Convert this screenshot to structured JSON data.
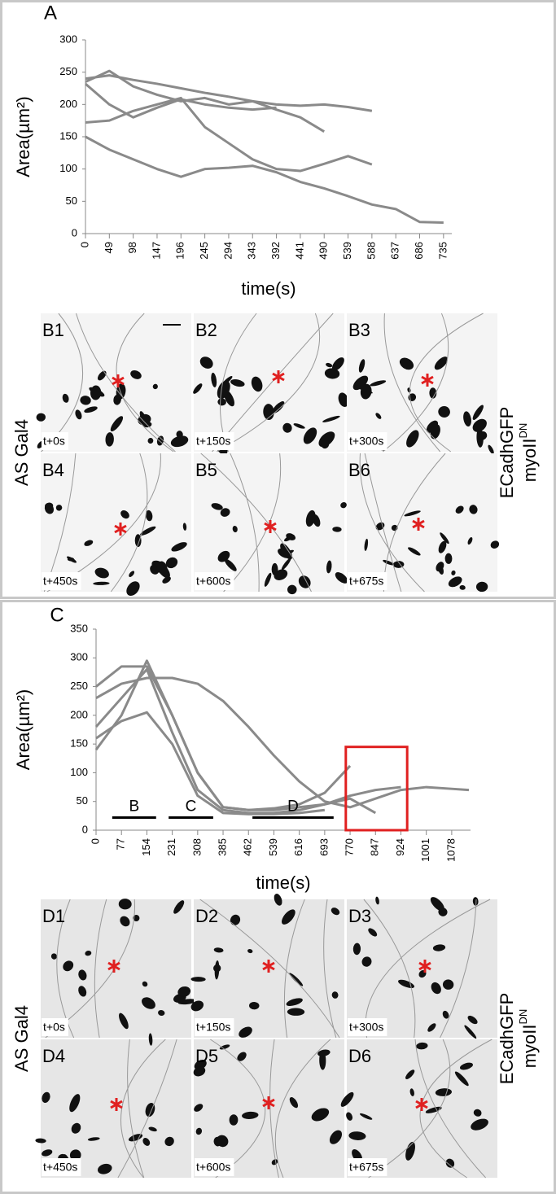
{
  "chart_data": [
    {
      "type": "line",
      "panel_label": "A",
      "ylabel": "Area(µm²)",
      "xlabel": "time(s)",
      "x": [
        0,
        49,
        98,
        147,
        196,
        245,
        294,
        343,
        392,
        441,
        490,
        539,
        588,
        637,
        686,
        735
      ],
      "series": [
        {
          "color": "#8a8a8a",
          "values": [
            240,
            245,
            238,
            232,
            225,
            218,
            212,
            205,
            200,
            198,
            200,
            196,
            190,
            null,
            null,
            null
          ]
        },
        {
          "color": "#8a8a8a",
          "values": [
            235,
            252,
            228,
            215,
            205,
            210,
            200,
            205,
            192,
            180,
            158,
            null,
            null,
            null,
            null,
            null
          ]
        },
        {
          "color": "#8a8a8a",
          "values": [
            172,
            175,
            190,
            200,
            210,
            165,
            140,
            115,
            100,
            97,
            108,
            120,
            107,
            null,
            null,
            null
          ]
        },
        {
          "color": "#8a8a8a",
          "values": [
            150,
            130,
            115,
            100,
            88,
            100,
            102,
            105,
            95,
            80,
            70,
            58,
            45,
            38,
            18,
            17
          ]
        },
        {
          "color": "#8a8a8a",
          "values": [
            232,
            200,
            180,
            195,
            208,
            200,
            195,
            192,
            195,
            null,
            null,
            null,
            null,
            null,
            null,
            null
          ]
        }
      ],
      "xlim": [
        0,
        752
      ],
      "ylim": [
        0,
        300
      ],
      "xticks": [
        0,
        49,
        98,
        147,
        196,
        245,
        294,
        343,
        392,
        441,
        490,
        539,
        588,
        637,
        686,
        735
      ],
      "yticks": [
        0,
        50,
        100,
        150,
        200,
        250,
        300
      ]
    },
    {
      "type": "line",
      "panel_label": "C",
      "ylabel": "Area(µm²)",
      "xlabel": "time(s)",
      "x": [
        0,
        77,
        154,
        231,
        308,
        385,
        462,
        539,
        616,
        693,
        770,
        847,
        924,
        1001,
        1078,
        1130
      ],
      "series": [
        {
          "color": "#8a8a8a",
          "values": [
            140,
            200,
            295,
            200,
            100,
            40,
            35,
            38,
            45,
            65,
            112,
            null,
            null,
            null,
            null,
            null
          ]
        },
        {
          "color": "#8a8a8a",
          "values": [
            250,
            285,
            285,
            200,
            100,
            40,
            35,
            35,
            40,
            45,
            55,
            30,
            null,
            null,
            null,
            null
          ]
        },
        {
          "color": "#8a8a8a",
          "values": [
            230,
            255,
            265,
            265,
            255,
            225,
            180,
            130,
            85,
            50,
            40,
            55,
            70,
            75,
            72,
            70
          ]
        },
        {
          "color": "#8a8a8a",
          "values": [
            180,
            230,
            280,
            170,
            70,
            35,
            30,
            30,
            35,
            45,
            60,
            70,
            75,
            null,
            null,
            null
          ]
        },
        {
          "color": "#8a8a8a",
          "values": [
            160,
            190,
            205,
            150,
            60,
            30,
            28,
            28,
            30,
            35,
            null,
            null,
            null,
            null,
            null,
            null
          ]
        }
      ],
      "xlim": [
        0,
        1135
      ],
      "ylim": [
        0,
        350
      ],
      "xticks": [
        0,
        77,
        154,
        231,
        308,
        385,
        462,
        539,
        616,
        693,
        770,
        847,
        924,
        1001,
        1078
      ],
      "yticks": [
        0,
        50,
        100,
        150,
        200,
        250,
        300,
        350
      ],
      "phase_bars": [
        {
          "label": "B",
          "x": [
            49,
            182
          ],
          "y": 22
        },
        {
          "label": "C",
          "x": [
            220,
            355
          ],
          "y": 22
        },
        {
          "label": "D",
          "x": [
            474,
            720
          ],
          "y": 22
        }
      ],
      "highlight": {
        "x": [
          757,
          943
        ],
        "y": [
          0,
          145
        ],
        "color": "#e02020"
      }
    }
  ],
  "image_grids": [
    {
      "panel_labels": [
        "B1",
        "B2",
        "B3",
        "B4",
        "B5",
        "B6"
      ],
      "time_labels": [
        "t+0s",
        "t+150s",
        "t+300s",
        "t+450s",
        "t+600s",
        "t+675s"
      ],
      "row_label": "AS Gal4",
      "column_label": "ECadhGFP",
      "column_label_2": "myoII",
      "column_label_2_sup": "DN"
    },
    {
      "panel_labels": [
        "D1",
        "D2",
        "D3",
        "D4",
        "D5",
        "D6"
      ],
      "time_labels": [
        "t+0s",
        "t+150s",
        "t+300s",
        "t+450s",
        "t+600s",
        "t+675s"
      ],
      "row_label": "AS Gal4",
      "column_label": "ECadhGFP",
      "column_label_2": "myoII",
      "column_label_2_sup": "DN"
    }
  ]
}
